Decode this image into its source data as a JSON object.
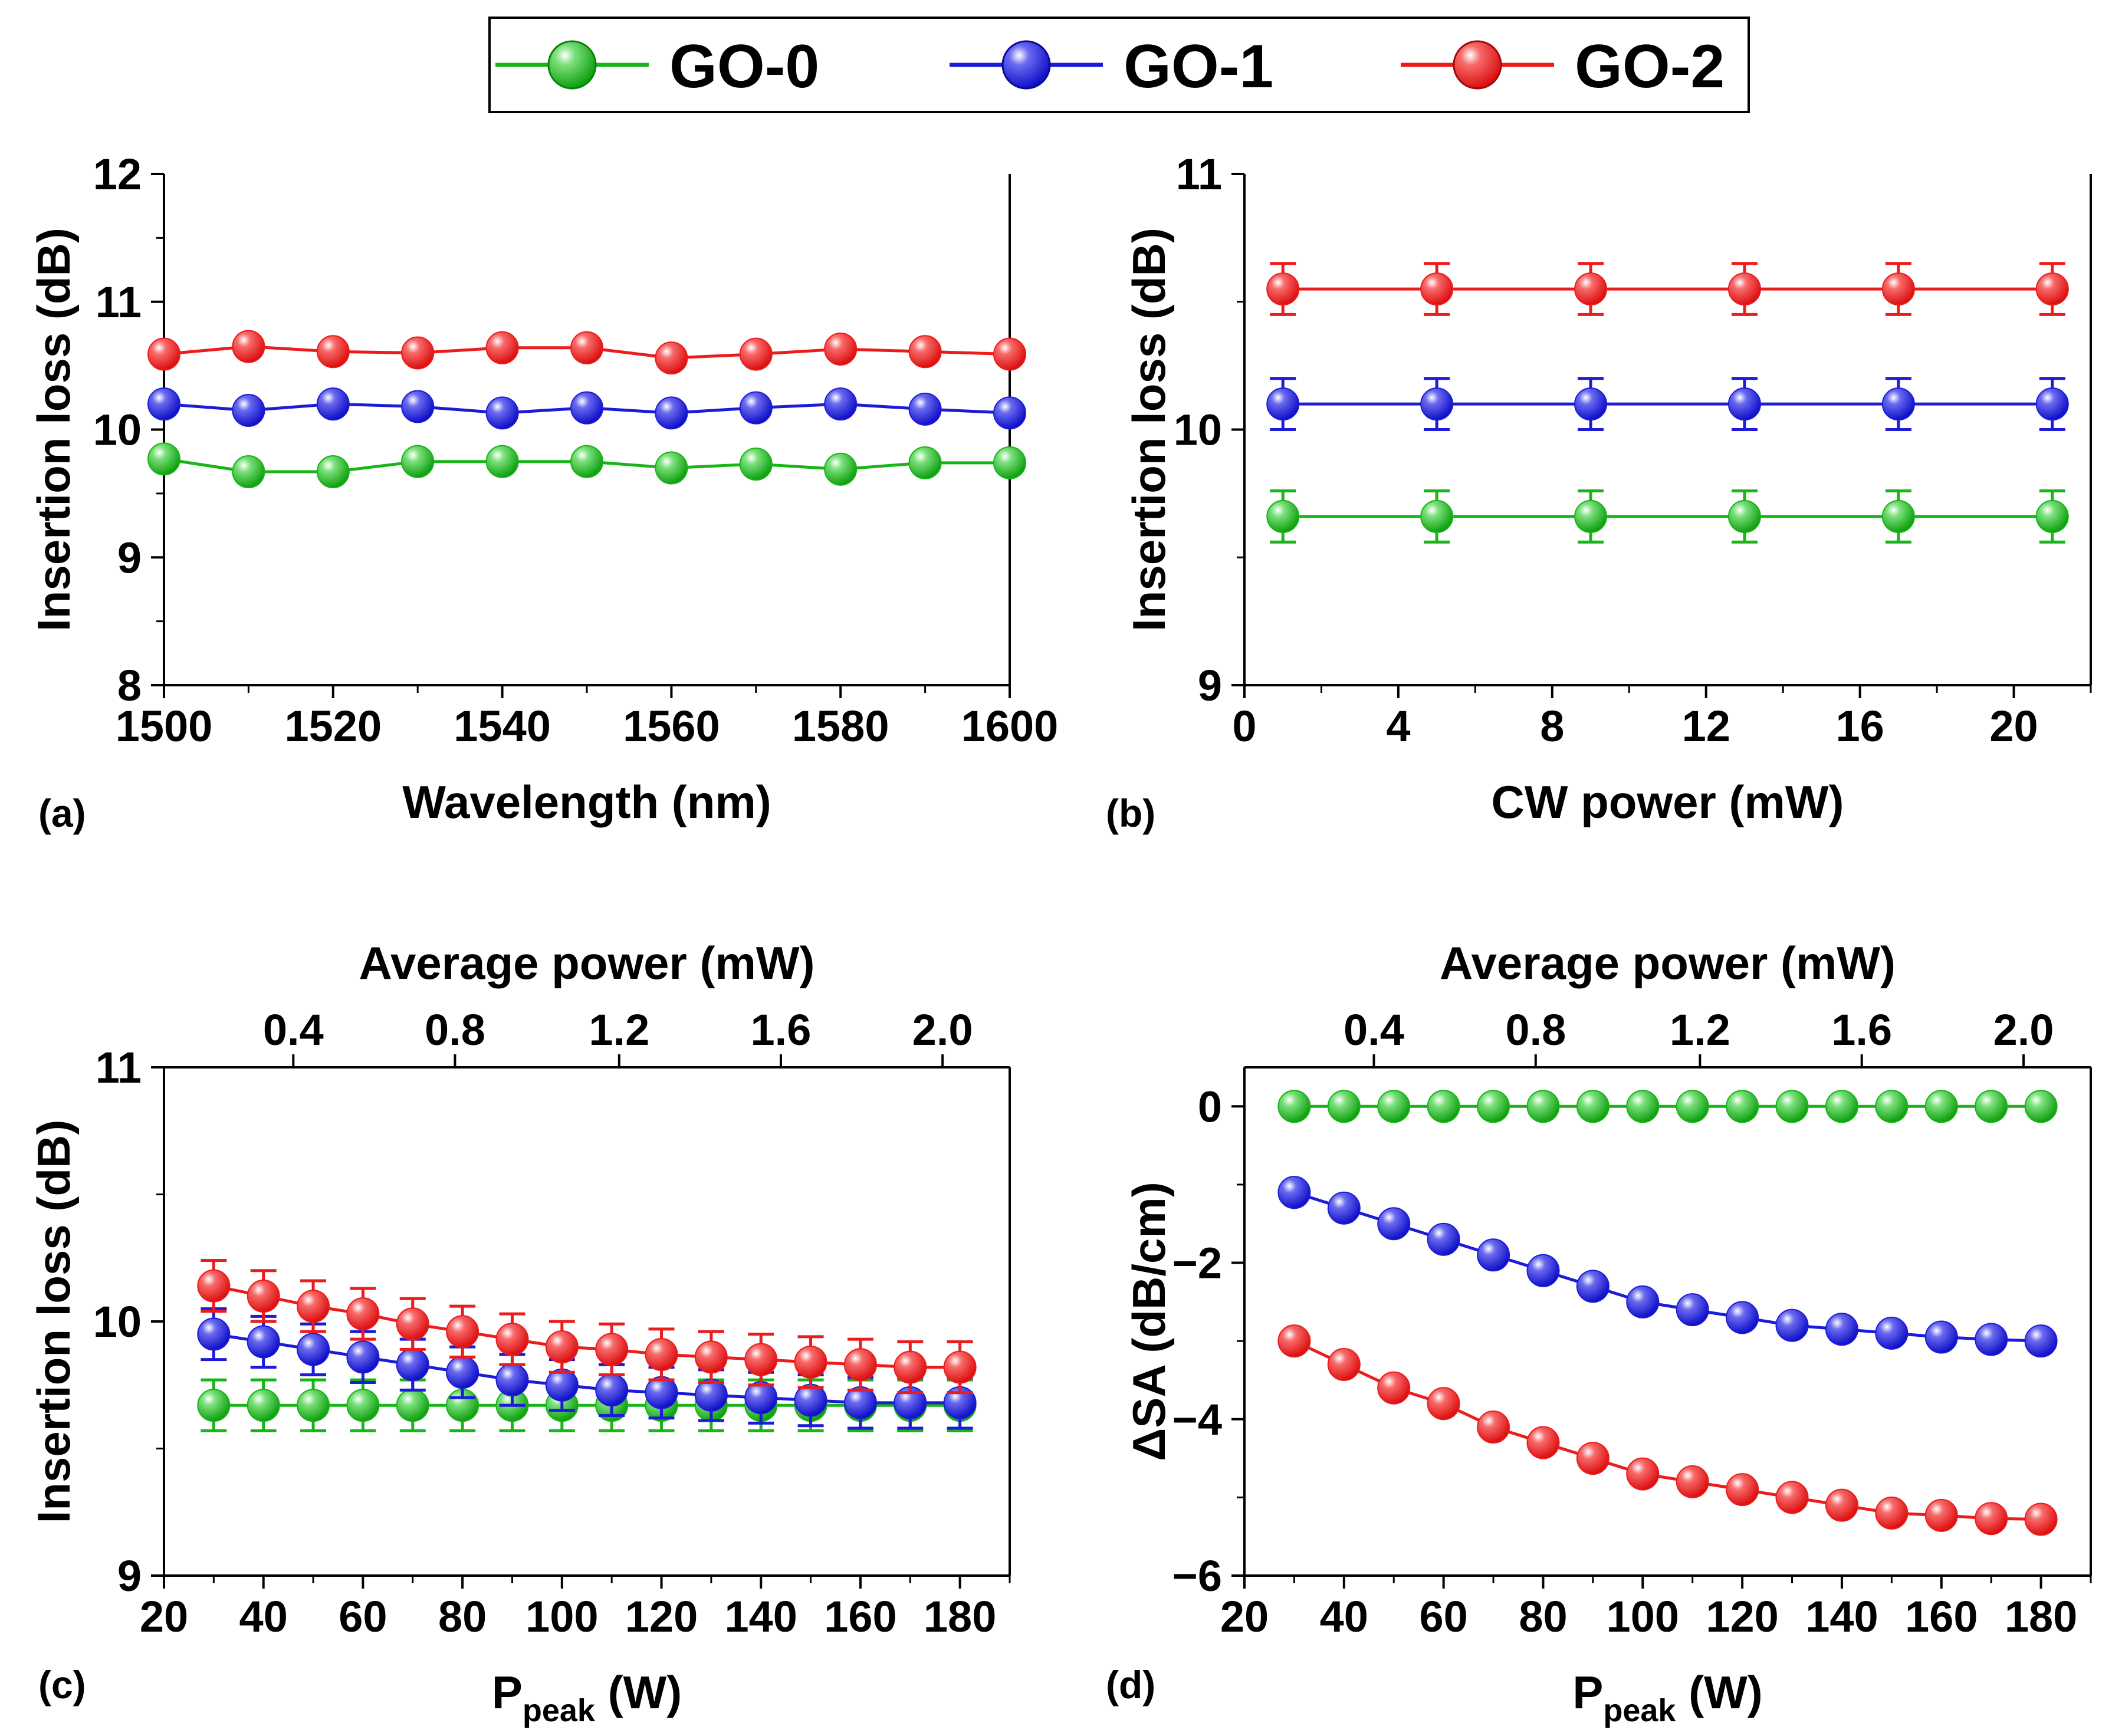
{
  "colors": {
    "GO-0": "#18b418",
    "GO-1": "#1c1cd8",
    "GO-2": "#ec1c1c"
  },
  "legend": {
    "entries": [
      "GO-0",
      "GO-1",
      "GO-2"
    ]
  },
  "chart_data": [
    {
      "id": "a",
      "panel_label": "(a)",
      "type": "line",
      "xlabel": "Wavelength (nm)",
      "ylabel": "Insertion loss (dB)",
      "xlim": [
        1500,
        1600
      ],
      "ylim": [
        8,
        12
      ],
      "xticks": [
        1500,
        1520,
        1540,
        1560,
        1580,
        1600
      ],
      "yticks": [
        8,
        9,
        10,
        11,
        12
      ],
      "x": [
        1500,
        1510,
        1520,
        1530,
        1540,
        1550,
        1560,
        1570,
        1580,
        1590,
        1600
      ],
      "series": [
        {
          "name": "GO-0",
          "values": [
            9.77,
            9.67,
            9.67,
            9.75,
            9.75,
            9.75,
            9.7,
            9.73,
            9.69,
            9.74,
            9.74
          ]
        },
        {
          "name": "GO-1",
          "values": [
            10.2,
            10.15,
            10.2,
            10.18,
            10.13,
            10.17,
            10.13,
            10.17,
            10.2,
            10.16,
            10.13
          ]
        },
        {
          "name": "GO-2",
          "values": [
            10.59,
            10.65,
            10.61,
            10.6,
            10.64,
            10.64,
            10.56,
            10.59,
            10.63,
            10.61,
            10.59
          ]
        }
      ]
    },
    {
      "id": "b",
      "panel_label": "(b)",
      "type": "line",
      "xlabel": "CW power (mW)",
      "ylabel": "Insertion loss (dB)",
      "xlim": [
        0,
        22
      ],
      "ylim": [
        9,
        11
      ],
      "xticks": [
        0,
        4,
        8,
        12,
        16,
        20
      ],
      "yticks": [
        9,
        10,
        11
      ],
      "x": [
        1,
        5,
        9,
        13,
        17,
        21
      ],
      "error_bar": 0.1,
      "series": [
        {
          "name": "GO-0",
          "values": [
            9.66,
            9.66,
            9.66,
            9.66,
            9.66,
            9.66
          ]
        },
        {
          "name": "GO-1",
          "values": [
            10.1,
            10.1,
            10.1,
            10.1,
            10.1,
            10.1
          ]
        },
        {
          "name": "GO-2",
          "values": [
            10.55,
            10.55,
            10.55,
            10.55,
            10.55,
            10.55
          ]
        }
      ]
    },
    {
      "id": "c",
      "panel_label": "(c)",
      "type": "line",
      "xlabel": "P",
      "xlabel_sub": "peak",
      "xlabel_unit": " (W)",
      "x2label": "Average power (mW)",
      "ylabel": "Insertion loss (dB)",
      "xlim": [
        20,
        190
      ],
      "ylim": [
        9,
        11
      ],
      "xticks": [
        20,
        40,
        60,
        80,
        100,
        120,
        140,
        160,
        180
      ],
      "yticks": [
        9,
        10,
        11
      ],
      "x2ticks": [
        0.4,
        0.8,
        1.2,
        1.6,
        2.0
      ],
      "x2tick_labels": [
        "0.4",
        "0.8",
        "1.2",
        "1.6",
        "2.0"
      ],
      "x2tick_positions_in_x": [
        46,
        78.5,
        111.5,
        144,
        176.5
      ],
      "x": [
        30,
        40,
        50,
        60,
        70,
        80,
        90,
        100,
        110,
        120,
        130,
        140,
        150,
        160,
        170,
        180
      ],
      "error_bar": 0.1,
      "series": [
        {
          "name": "GO-0",
          "values": [
            9.67,
            9.67,
            9.67,
            9.67,
            9.67,
            9.67,
            9.67,
            9.67,
            9.67,
            9.67,
            9.67,
            9.67,
            9.67,
            9.67,
            9.67,
            9.67
          ]
        },
        {
          "name": "GO-1",
          "values": [
            9.95,
            9.92,
            9.89,
            9.86,
            9.83,
            9.8,
            9.77,
            9.75,
            9.73,
            9.72,
            9.71,
            9.7,
            9.69,
            9.68,
            9.68,
            9.68
          ]
        },
        {
          "name": "GO-2",
          "values": [
            10.14,
            10.1,
            10.06,
            10.03,
            9.99,
            9.96,
            9.93,
            9.9,
            9.89,
            9.87,
            9.86,
            9.85,
            9.84,
            9.83,
            9.82,
            9.82
          ]
        }
      ]
    },
    {
      "id": "d",
      "panel_label": "(d)",
      "type": "line",
      "xlabel": "P",
      "xlabel_sub": "peak",
      "xlabel_unit": " (W)",
      "x2label": "Average power (mW)",
      "ylabel": "ΔSA (dB/cm)",
      "xlim": [
        20,
        190
      ],
      "ylim": [
        -6,
        0.5
      ],
      "xticks": [
        20,
        40,
        60,
        80,
        100,
        120,
        140,
        160,
        180
      ],
      "yticks": [
        -6,
        -4,
        -2,
        0
      ],
      "x2ticks": [
        0.4,
        0.8,
        1.2,
        1.6,
        2.0
      ],
      "x2tick_labels": [
        "0.4",
        "0.8",
        "1.2",
        "1.6",
        "2.0"
      ],
      "x2tick_positions_in_x": [
        46,
        78.5,
        111.5,
        144,
        176.5
      ],
      "x": [
        30,
        40,
        50,
        60,
        70,
        80,
        90,
        100,
        110,
        120,
        130,
        140,
        150,
        160,
        170,
        180
      ],
      "series": [
        {
          "name": "GO-0",
          "values": [
            0,
            0,
            0,
            0,
            0,
            0,
            0,
            0,
            0,
            0,
            0,
            0,
            0,
            0,
            0,
            0
          ]
        },
        {
          "name": "GO-1",
          "values": [
            -1.1,
            -1.3,
            -1.5,
            -1.7,
            -1.9,
            -2.1,
            -2.3,
            -2.5,
            -2.6,
            -2.7,
            -2.8,
            -2.85,
            -2.9,
            -2.95,
            -2.98,
            -3.0
          ]
        },
        {
          "name": "GO-2",
          "values": [
            -3.0,
            -3.3,
            -3.6,
            -3.8,
            -4.1,
            -4.3,
            -4.5,
            -4.7,
            -4.8,
            -4.9,
            -5.0,
            -5.1,
            -5.2,
            -5.23,
            -5.27,
            -5.28
          ]
        }
      ]
    }
  ]
}
